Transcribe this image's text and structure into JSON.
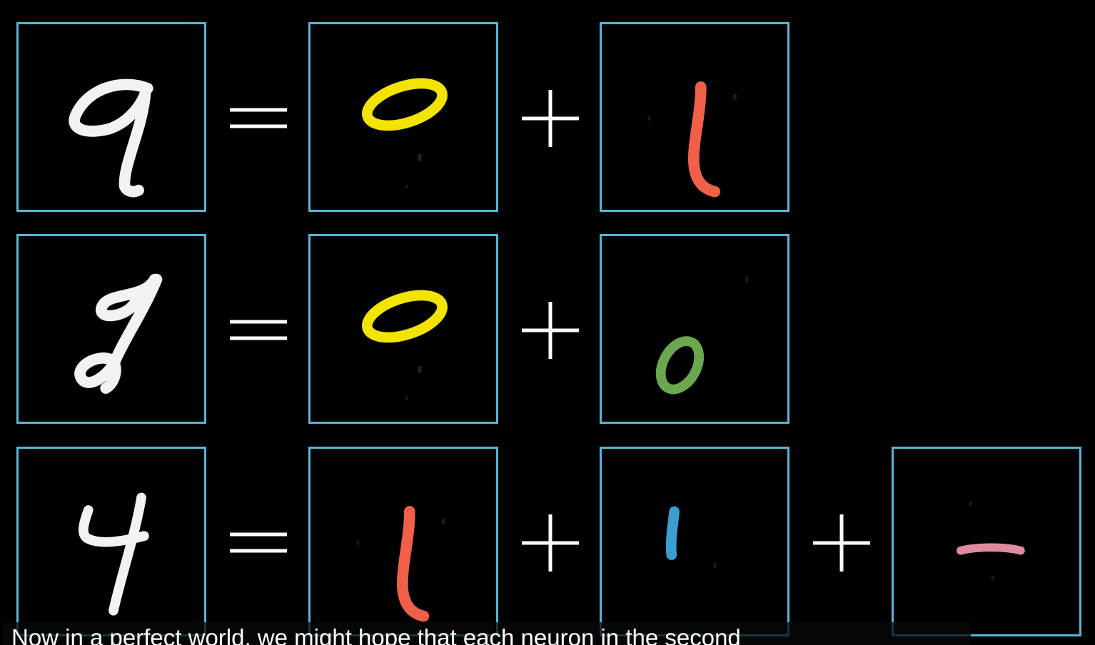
{
  "colors": {
    "frame": "#5ab4d6",
    "background": "#000000",
    "digit_white": "#f2f2f2",
    "loop_yellow": "#f3e400",
    "stroke_orange": "#f06048",
    "loop_green": "#6aa84f",
    "stroke_blue": "#3a9fd0",
    "stroke_pink": "#e08aa0",
    "operator": "#ffffff"
  },
  "rows": [
    {
      "target": {
        "label": "9",
        "icon": "digit-nine-icon"
      },
      "parts": [
        {
          "label": "0",
          "icon": "yellow-loop-icon"
        },
        {
          "label": "1",
          "icon": "orange-vertical-stroke-icon"
        }
      ]
    },
    {
      "target": {
        "label": "8",
        "icon": "digit-eight-icon"
      },
      "parts": [
        {
          "label": "0",
          "icon": "yellow-loop-icon"
        },
        {
          "label": "0",
          "icon": "green-small-loop-icon"
        }
      ]
    },
    {
      "target": {
        "label": "4",
        "icon": "digit-four-icon"
      },
      "parts": [
        {
          "label": "1",
          "icon": "orange-vertical-stroke-icon"
        },
        {
          "label": "1",
          "icon": "blue-short-stroke-icon"
        },
        {
          "label": "−",
          "icon": "pink-horizontal-stroke-icon"
        }
      ]
    }
  ],
  "operators": {
    "equals_icon": "equals-sign-icon",
    "plus_icon": "plus-sign-icon"
  },
  "caption": {
    "text": "Now in a perfect world, we might hope that each neuron in the second"
  }
}
